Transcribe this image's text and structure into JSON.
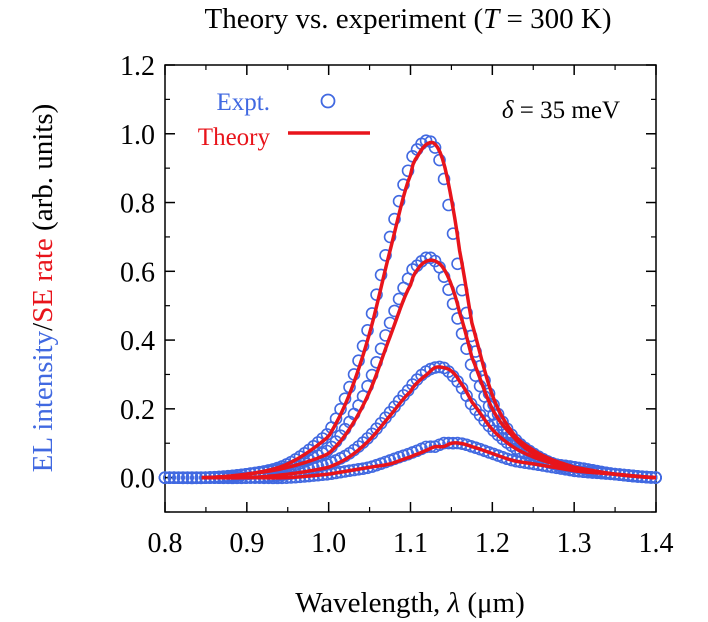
{
  "chart_data": {
    "type": "line",
    "title": {
      "prefix": "Theory vs. experiment (",
      "var": "T",
      "suffix": " = 300 K)"
    },
    "xlabel": {
      "prefix": "Wavelength, ",
      "var": "λ",
      "suffix": " (μm)"
    },
    "ylabel": {
      "part1": "EL intensity",
      "sep": "/",
      "part2": "SE rate",
      "suffix": " (arb. units)"
    },
    "xlim": [
      0.8,
      1.4
    ],
    "ylim": [
      -0.1,
      1.2
    ],
    "xticks": [
      "0.8",
      "0.9",
      "1.0",
      "1.1",
      "1.2",
      "1.3",
      "1.4"
    ],
    "yticks": [
      "0.0",
      "0.2",
      "0.4",
      "0.6",
      "0.8",
      "1.0",
      "1.2"
    ],
    "annotation": {
      "var": "δ",
      "text": " = 35 meV"
    },
    "legend": {
      "position": "top-left",
      "entries": [
        "Expt.",
        "Theory"
      ]
    },
    "colors": {
      "expt": "#4169e1",
      "theory": "#e8141b"
    },
    "x": [
      0.8,
      0.85,
      0.9,
      0.95,
      1.0,
      1.025,
      1.05,
      1.075,
      1.1,
      1.11,
      1.12,
      1.13,
      1.14,
      1.15,
      1.16,
      1.175,
      1.2,
      1.225,
      1.25,
      1.275,
      1.3,
      1.35,
      1.4
    ],
    "series": [
      {
        "name": "Expt.",
        "style": "markers",
        "curves": [
          [
            0.0,
            0.0,
            0.01,
            0.04,
            0.13,
            0.26,
            0.45,
            0.7,
            0.91,
            0.96,
            0.98,
            0.96,
            0.88,
            0.74,
            0.58,
            0.4,
            0.22,
            0.12,
            0.07,
            0.04,
            0.03,
            0.01,
            0.0
          ],
          [
            0.0,
            0.0,
            0.01,
            0.03,
            0.08,
            0.16,
            0.28,
            0.45,
            0.59,
            0.62,
            0.64,
            0.63,
            0.59,
            0.52,
            0.44,
            0.32,
            0.19,
            0.11,
            0.07,
            0.04,
            0.03,
            0.01,
            0.0
          ],
          [
            0.0,
            0.0,
            0.0,
            0.01,
            0.04,
            0.07,
            0.12,
            0.19,
            0.26,
            0.29,
            0.31,
            0.32,
            0.32,
            0.3,
            0.27,
            0.21,
            0.14,
            0.09,
            0.06,
            0.04,
            0.02,
            0.01,
            0.0
          ],
          [
            0.0,
            0.0,
            0.0,
            0.0,
            0.01,
            0.02,
            0.03,
            0.05,
            0.07,
            0.08,
            0.09,
            0.09,
            0.1,
            0.1,
            0.1,
            0.09,
            0.07,
            0.05,
            0.04,
            0.03,
            0.02,
            0.01,
            0.0
          ]
        ]
      },
      {
        "name": "Theory",
        "style": "line",
        "curves": [
          [
            0.0,
            0.0,
            0.01,
            0.04,
            0.12,
            0.24,
            0.42,
            0.66,
            0.88,
            0.94,
            0.97,
            0.97,
            0.92,
            0.81,
            0.66,
            0.45,
            0.24,
            0.13,
            0.08,
            0.05,
            0.03,
            0.01,
            0.0
          ],
          [
            0.0,
            0.0,
            0.01,
            0.03,
            0.07,
            0.14,
            0.25,
            0.41,
            0.56,
            0.61,
            0.63,
            0.63,
            0.61,
            0.56,
            0.48,
            0.35,
            0.2,
            0.12,
            0.07,
            0.05,
            0.03,
            0.01,
            0.0
          ],
          [
            0.0,
            0.0,
            0.0,
            0.01,
            0.03,
            0.06,
            0.11,
            0.18,
            0.25,
            0.28,
            0.3,
            0.32,
            0.32,
            0.31,
            0.28,
            0.22,
            0.14,
            0.09,
            0.06,
            0.04,
            0.02,
            0.01,
            0.0
          ],
          [
            0.0,
            0.0,
            0.0,
            0.0,
            0.01,
            0.02,
            0.03,
            0.04,
            0.06,
            0.07,
            0.08,
            0.09,
            0.09,
            0.1,
            0.1,
            0.09,
            0.07,
            0.05,
            0.04,
            0.03,
            0.02,
            0.01,
            0.0
          ]
        ]
      }
    ]
  }
}
